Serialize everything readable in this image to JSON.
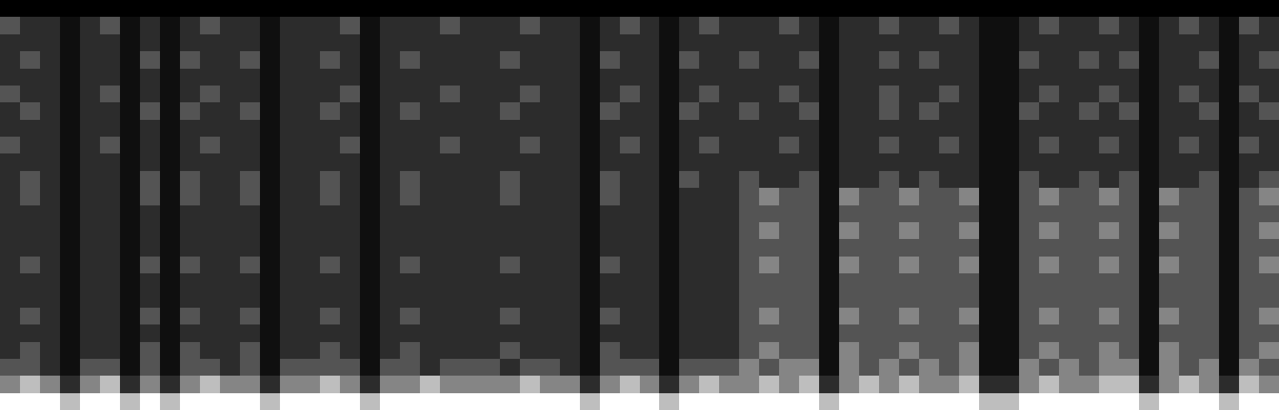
{
  "chart_data": {
    "type": "heatmap",
    "tick_labels": false,
    "clim": [
      0,
      6
    ],
    "cells": [
      [
        0,
        0,
        0,
        0,
        0,
        0,
        0,
        0,
        0,
        0,
        0,
        0,
        0,
        0,
        0,
        0,
        0,
        0,
        0,
        0,
        0,
        0,
        0,
        0,
        0,
        0,
        0,
        0,
        0,
        0,
        0,
        0,
        0,
        0,
        0,
        0,
        0,
        0,
        0,
        0,
        0,
        0,
        0,
        0,
        0,
        0,
        0,
        0,
        0,
        0,
        0,
        0,
        0,
        0,
        0,
        0,
        0,
        0,
        0,
        0,
        0,
        0,
        0,
        0
      ],
      [
        3,
        2,
        2,
        1,
        2,
        3,
        1,
        2,
        1,
        2,
        3,
        2,
        2,
        1,
        2,
        2,
        2,
        3,
        1,
        2,
        2,
        2,
        3,
        2,
        2,
        2,
        3,
        2,
        2,
        1,
        2,
        3,
        2,
        1,
        2,
        3,
        2,
        2,
        2,
        3,
        2,
        1,
        2,
        2,
        3,
        2,
        2,
        3,
        2,
        1,
        1,
        2,
        3,
        2,
        2,
        3,
        2,
        1,
        2,
        3,
        2,
        1,
        3,
        2
      ],
      [
        2,
        2,
        2,
        1,
        2,
        2,
        1,
        2,
        1,
        2,
        2,
        2,
        2,
        1,
        2,
        2,
        2,
        2,
        1,
        2,
        2,
        2,
        2,
        2,
        2,
        2,
        2,
        2,
        2,
        1,
        2,
        2,
        2,
        1,
        2,
        2,
        2,
        2,
        2,
        2,
        2,
        1,
        2,
        2,
        2,
        2,
        2,
        2,
        2,
        1,
        1,
        2,
        2,
        2,
        2,
        2,
        2,
        1,
        2,
        2,
        2,
        1,
        2,
        2
      ],
      [
        2,
        3,
        2,
        1,
        2,
        2,
        1,
        3,
        1,
        3,
        2,
        2,
        3,
        1,
        2,
        2,
        3,
        2,
        1,
        2,
        3,
        2,
        2,
        2,
        2,
        3,
        2,
        2,
        2,
        1,
        3,
        2,
        2,
        1,
        3,
        2,
        2,
        3,
        2,
        2,
        3,
        1,
        2,
        2,
        3,
        2,
        3,
        2,
        2,
        1,
        1,
        3,
        2,
        2,
        3,
        2,
        3,
        1,
        2,
        2,
        3,
        1,
        2,
        3
      ],
      [
        2,
        2,
        2,
        1,
        2,
        2,
        1,
        2,
        1,
        2,
        2,
        2,
        2,
        1,
        2,
        2,
        2,
        2,
        1,
        2,
        2,
        2,
        2,
        2,
        2,
        2,
        2,
        2,
        2,
        1,
        2,
        2,
        2,
        1,
        2,
        2,
        2,
        2,
        2,
        2,
        2,
        1,
        2,
        2,
        2,
        2,
        2,
        2,
        2,
        1,
        1,
        2,
        2,
        2,
        2,
        2,
        2,
        1,
        2,
        2,
        2,
        1,
        2,
        2
      ],
      [
        3,
        2,
        2,
        1,
        2,
        3,
        1,
        2,
        1,
        2,
        3,
        2,
        2,
        1,
        2,
        2,
        2,
        3,
        1,
        2,
        2,
        2,
        3,
        2,
        2,
        2,
        3,
        2,
        2,
        1,
        2,
        3,
        2,
        1,
        2,
        3,
        2,
        2,
        2,
        3,
        2,
        1,
        2,
        2,
        3,
        2,
        2,
        3,
        2,
        1,
        1,
        2,
        3,
        2,
        2,
        3,
        2,
        1,
        2,
        3,
        2,
        1,
        3,
        2
      ],
      [
        2,
        3,
        2,
        1,
        2,
        2,
        1,
        3,
        1,
        3,
        2,
        2,
        3,
        1,
        2,
        2,
        3,
        2,
        1,
        2,
        3,
        2,
        2,
        2,
        2,
        3,
        2,
        2,
        2,
        1,
        3,
        2,
        2,
        1,
        3,
        2,
        2,
        3,
        2,
        2,
        3,
        1,
        2,
        2,
        3,
        2,
        3,
        2,
        2,
        1,
        1,
        3,
        2,
        2,
        3,
        2,
        3,
        1,
        2,
        2,
        3,
        1,
        2,
        3
      ],
      [
        2,
        2,
        2,
        1,
        2,
        2,
        1,
        2,
        1,
        2,
        2,
        2,
        2,
        1,
        2,
        2,
        2,
        2,
        1,
        2,
        2,
        2,
        2,
        2,
        2,
        2,
        2,
        2,
        2,
        1,
        2,
        2,
        2,
        1,
        2,
        2,
        2,
        2,
        2,
        2,
        2,
        1,
        2,
        2,
        2,
        2,
        2,
        2,
        2,
        1,
        1,
        2,
        2,
        2,
        2,
        2,
        2,
        1,
        2,
        2,
        2,
        1,
        2,
        2
      ],
      [
        3,
        2,
        2,
        1,
        2,
        3,
        1,
        2,
        1,
        2,
        3,
        2,
        2,
        1,
        2,
        2,
        2,
        3,
        1,
        2,
        2,
        2,
        3,
        2,
        2,
        2,
        3,
        2,
        2,
        1,
        2,
        3,
        2,
        1,
        2,
        3,
        2,
        2,
        2,
        3,
        2,
        1,
        2,
        2,
        3,
        2,
        2,
        3,
        2,
        1,
        1,
        2,
        3,
        2,
        2,
        3,
        2,
        1,
        2,
        3,
        2,
        1,
        3,
        2
      ],
      [
        2,
        2,
        2,
        1,
        2,
        2,
        1,
        2,
        1,
        2,
        2,
        2,
        2,
        1,
        2,
        2,
        2,
        2,
        1,
        2,
        2,
        2,
        2,
        2,
        2,
        2,
        2,
        2,
        2,
        1,
        2,
        2,
        2,
        1,
        2,
        2,
        2,
        2,
        2,
        2,
        2,
        1,
        2,
        2,
        2,
        2,
        2,
        2,
        2,
        1,
        1,
        2,
        2,
        2,
        2,
        2,
        2,
        1,
        2,
        2,
        2,
        1,
        2,
        2
      ],
      [
        2,
        3,
        2,
        1,
        2,
        2,
        1,
        3,
        1,
        3,
        2,
        2,
        3,
        1,
        2,
        2,
        3,
        2,
        1,
        2,
        3,
        2,
        2,
        2,
        2,
        3,
        2,
        2,
        2,
        1,
        3,
        2,
        2,
        1,
        3,
        2,
        2,
        3,
        2,
        2,
        3,
        1,
        2,
        2,
        3,
        2,
        3,
        2,
        2,
        1,
        1,
        3,
        2,
        2,
        3,
        2,
        3,
        1,
        2,
        2,
        3,
        1,
        2,
        3
      ],
      [
        2,
        3,
        2,
        1,
        2,
        2,
        1,
        3,
        1,
        3,
        2,
        2,
        3,
        1,
        2,
        2,
        3,
        2,
        1,
        2,
        3,
        2,
        2,
        2,
        2,
        3,
        2,
        2,
        2,
        1,
        3,
        2,
        2,
        1,
        2,
        2,
        2,
        3,
        4,
        3,
        3,
        1,
        4,
        3,
        3,
        4,
        3,
        3,
        4,
        1,
        1,
        3,
        4,
        3,
        3,
        4,
        3,
        1,
        4,
        3,
        3,
        1,
        3,
        4
      ],
      [
        2,
        2,
        2,
        1,
        2,
        2,
        1,
        2,
        1,
        2,
        2,
        2,
        2,
        1,
        2,
        2,
        2,
        2,
        1,
        2,
        2,
        2,
        2,
        2,
        2,
        2,
        2,
        2,
        2,
        1,
        2,
        2,
        2,
        1,
        2,
        2,
        2,
        3,
        3,
        3,
        3,
        1,
        3,
        3,
        3,
        3,
        3,
        3,
        3,
        1,
        1,
        3,
        3,
        3,
        3,
        3,
        3,
        1,
        3,
        3,
        3,
        1,
        3,
        3
      ],
      [
        2,
        2,
        2,
        1,
        2,
        2,
        1,
        2,
        1,
        2,
        2,
        2,
        2,
        1,
        2,
        2,
        2,
        2,
        1,
        2,
        2,
        2,
        2,
        2,
        2,
        2,
        2,
        2,
        2,
        1,
        2,
        2,
        2,
        1,
        2,
        2,
        2,
        3,
        4,
        3,
        3,
        1,
        4,
        3,
        3,
        4,
        3,
        3,
        4,
        1,
        1,
        3,
        4,
        3,
        3,
        4,
        3,
        1,
        4,
        3,
        3,
        1,
        3,
        4
      ],
      [
        2,
        2,
        2,
        1,
        2,
        2,
        1,
        2,
        1,
        2,
        2,
        2,
        2,
        1,
        2,
        2,
        2,
        2,
        1,
        2,
        2,
        2,
        2,
        2,
        2,
        2,
        2,
        2,
        2,
        1,
        2,
        2,
        2,
        1,
        2,
        2,
        2,
        3,
        3,
        3,
        3,
        1,
        3,
        3,
        3,
        3,
        3,
        3,
        3,
        1,
        1,
        3,
        3,
        3,
        3,
        3,
        3,
        1,
        3,
        3,
        3,
        1,
        3,
        3
      ],
      [
        2,
        3,
        2,
        1,
        2,
        2,
        1,
        3,
        1,
        3,
        2,
        2,
        3,
        1,
        2,
        2,
        3,
        2,
        1,
        2,
        3,
        2,
        2,
        2,
        2,
        3,
        2,
        2,
        2,
        1,
        3,
        2,
        2,
        1,
        2,
        2,
        2,
        3,
        4,
        3,
        3,
        1,
        4,
        3,
        3,
        4,
        3,
        3,
        4,
        1,
        1,
        3,
        4,
        3,
        3,
        4,
        3,
        1,
        4,
        3,
        3,
        1,
        3,
        4
      ],
      [
        2,
        2,
        2,
        1,
        2,
        2,
        1,
        2,
        1,
        2,
        2,
        2,
        2,
        1,
        2,
        2,
        2,
        2,
        1,
        2,
        2,
        2,
        2,
        2,
        2,
        2,
        2,
        2,
        2,
        1,
        2,
        2,
        2,
        1,
        2,
        2,
        2,
        3,
        3,
        3,
        3,
        1,
        3,
        3,
        3,
        3,
        3,
        3,
        3,
        1,
        1,
        3,
        3,
        3,
        3,
        3,
        3,
        1,
        3,
        3,
        3,
        1,
        3,
        3
      ],
      [
        2,
        2,
        2,
        1,
        2,
        2,
        1,
        2,
        1,
        2,
        2,
        2,
        2,
        1,
        2,
        2,
        2,
        2,
        1,
        2,
        2,
        2,
        2,
        2,
        2,
        2,
        2,
        2,
        2,
        1,
        2,
        2,
        2,
        1,
        2,
        2,
        2,
        3,
        3,
        3,
        3,
        1,
        3,
        3,
        3,
        3,
        3,
        3,
        3,
        1,
        1,
        3,
        3,
        3,
        3,
        3,
        3,
        1,
        3,
        3,
        3,
        1,
        3,
        3
      ],
      [
        2,
        3,
        2,
        1,
        2,
        2,
        1,
        3,
        1,
        3,
        2,
        2,
        3,
        1,
        2,
        2,
        3,
        2,
        1,
        2,
        3,
        2,
        2,
        2,
        2,
        3,
        2,
        2,
        2,
        1,
        3,
        2,
        2,
        1,
        2,
        2,
        2,
        3,
        4,
        3,
        3,
        1,
        4,
        3,
        3,
        4,
        3,
        3,
        4,
        1,
        1,
        3,
        4,
        3,
        3,
        4,
        3,
        1,
        4,
        3,
        3,
        1,
        3,
        4
      ],
      [
        2,
        2,
        2,
        1,
        2,
        2,
        1,
        2,
        1,
        2,
        2,
        2,
        2,
        1,
        2,
        2,
        2,
        2,
        1,
        2,
        2,
        2,
        2,
        2,
        2,
        2,
        2,
        2,
        2,
        1,
        2,
        2,
        2,
        1,
        2,
        2,
        2,
        3,
        3,
        3,
        3,
        1,
        3,
        3,
        3,
        3,
        3,
        3,
        3,
        1,
        1,
        3,
        3,
        3,
        3,
        3,
        3,
        1,
        3,
        3,
        3,
        1,
        3,
        3
      ],
      [
        2,
        3,
        2,
        1,
        2,
        2,
        1,
        3,
        1,
        3,
        2,
        2,
        3,
        1,
        2,
        2,
        3,
        2,
        1,
        2,
        3,
        2,
        2,
        2,
        2,
        3,
        2,
        2,
        2,
        1,
        3,
        2,
        2,
        1,
        2,
        2,
        2,
        3,
        4,
        3,
        3,
        1,
        4,
        3,
        3,
        4,
        3,
        3,
        4,
        1,
        1,
        3,
        4,
        3,
        3,
        4,
        3,
        1,
        4,
        3,
        3,
        1,
        3,
        4
      ],
      [
        3,
        3,
        2,
        1,
        3,
        3,
        1,
        3,
        1,
        3,
        3,
        2,
        3,
        1,
        3,
        3,
        3,
        3,
        1,
        3,
        3,
        2,
        3,
        3,
        3,
        2,
        3,
        3,
        2,
        1,
        3,
        3,
        3,
        1,
        3,
        3,
        3,
        4,
        3,
        4,
        4,
        1,
        4,
        3,
        4,
        3,
        4,
        3,
        4,
        1,
        1,
        4,
        3,
        4,
        3,
        4,
        4,
        1,
        4,
        3,
        4,
        1,
        4,
        3
      ],
      [
        4,
        5,
        4,
        2,
        4,
        5,
        2,
        4,
        2,
        4,
        5,
        4,
        4,
        2,
        4,
        4,
        5,
        4,
        2,
        4,
        4,
        5,
        4,
        4,
        4,
        4,
        5,
        4,
        4,
        2,
        4,
        5,
        4,
        2,
        4,
        5,
        4,
        4,
        5,
        4,
        5,
        2,
        4,
        5,
        4,
        5,
        4,
        4,
        5,
        2,
        2,
        4,
        5,
        4,
        4,
        5,
        5,
        2,
        4,
        5,
        4,
        2,
        5,
        4
      ],
      [
        6,
        6,
        6,
        5,
        6,
        6,
        5,
        6,
        5,
        6,
        6,
        6,
        6,
        5,
        6,
        6,
        6,
        6,
        5,
        6,
        6,
        6,
        6,
        6,
        6,
        6,
        6,
        6,
        6,
        5,
        6,
        6,
        6,
        5,
        6,
        6,
        6,
        6,
        6,
        6,
        6,
        5,
        6,
        6,
        6,
        6,
        6,
        6,
        6,
        5,
        5,
        6,
        6,
        6,
        6,
        6,
        6,
        5,
        6,
        6,
        6,
        5,
        6,
        6
      ]
    ]
  }
}
